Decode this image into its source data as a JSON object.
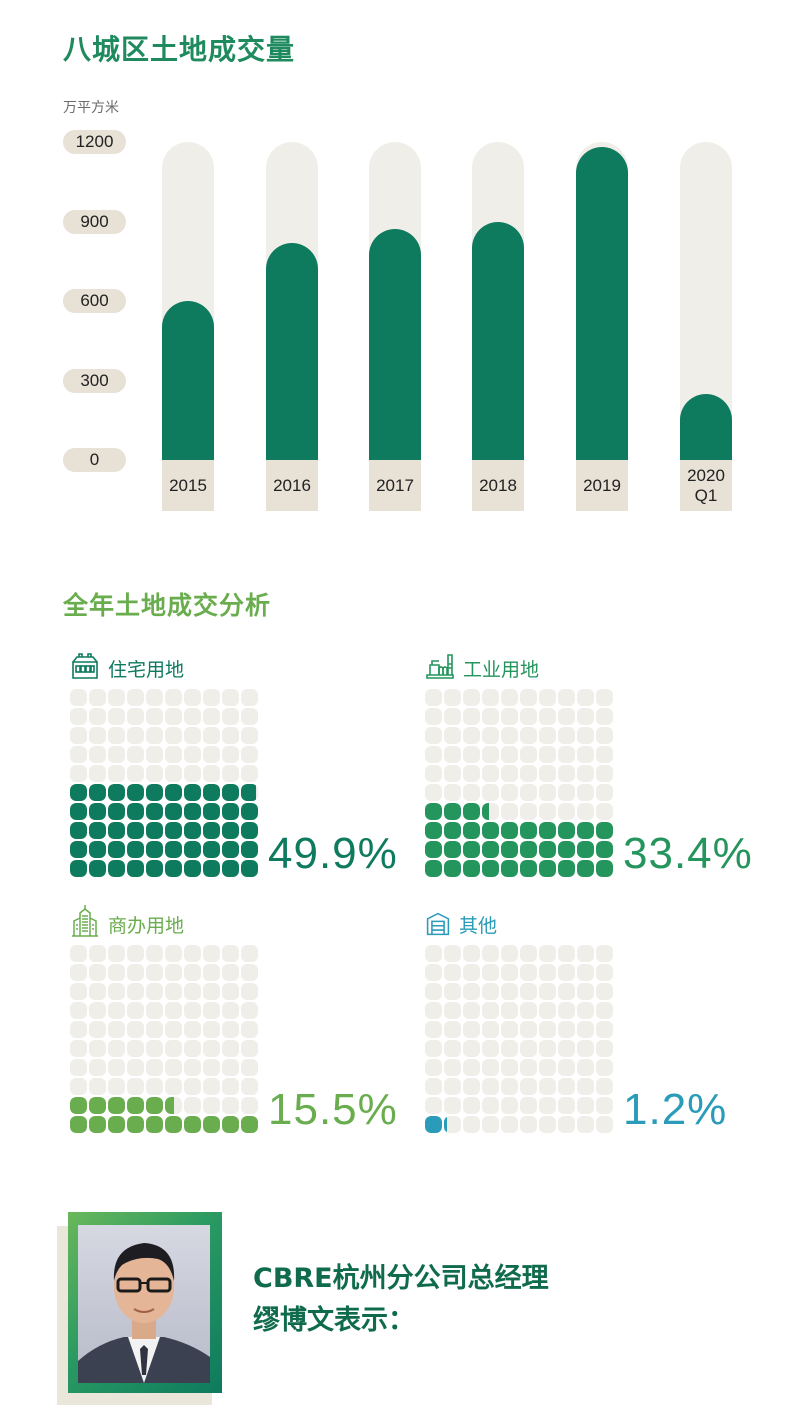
{
  "header": {
    "title": "八城区土地成交量",
    "unit": "万平方米"
  },
  "chart_data": [
    {
      "type": "bar",
      "title": "八城区土地成交量",
      "ylabel": "万平方米",
      "xlabel": "",
      "categories": [
        "2015",
        "2016",
        "2017",
        "2018",
        "2019",
        "2020\nQ1"
      ],
      "values": [
        600,
        820,
        870,
        900,
        1180,
        250
      ],
      "yticks": [
        "0",
        "300",
        "600",
        "900",
        "1200"
      ],
      "ylim": [
        0,
        1200
      ],
      "grid": false,
      "colors": {
        "bar": "#0e7a5e",
        "track": "#f0eee9",
        "label_bg": "#e7e1d6"
      }
    },
    {
      "type": "waffle",
      "title": "全年土地成交分析",
      "categories": [
        "住宅用地",
        "工业用地",
        "商办用地",
        "其他"
      ],
      "values": [
        49.9,
        33.4,
        15.5,
        1.2
      ],
      "unit": "%",
      "grid_size": [
        10,
        10
      ],
      "colors": [
        "#0e7a5e",
        "#24955c",
        "#6aad4e",
        "#2a9bb8"
      ]
    }
  ],
  "analysis": {
    "title": "全年土地成交分析",
    "categories": [
      {
        "label": "住宅用地",
        "percent_text": "49.9%",
        "value": 49.9,
        "icon": "residential-building-icon",
        "color": "#0e7a5e"
      },
      {
        "label": "工业用地",
        "percent_text": "33.4%",
        "value": 33.4,
        "icon": "factory-icon",
        "color": "#24955c"
      },
      {
        "label": "商办用地",
        "percent_text": "15.5%",
        "value": 15.5,
        "icon": "office-tower-icon",
        "color": "#6aad4e"
      },
      {
        "label": "其他",
        "percent_text": "1.2%",
        "value": 1.2,
        "icon": "warehouse-icon",
        "color": "#2a9bb8"
      }
    ]
  },
  "profile": {
    "line1": "CBRE杭州分公司总经理",
    "line2": "缪博文表示："
  }
}
